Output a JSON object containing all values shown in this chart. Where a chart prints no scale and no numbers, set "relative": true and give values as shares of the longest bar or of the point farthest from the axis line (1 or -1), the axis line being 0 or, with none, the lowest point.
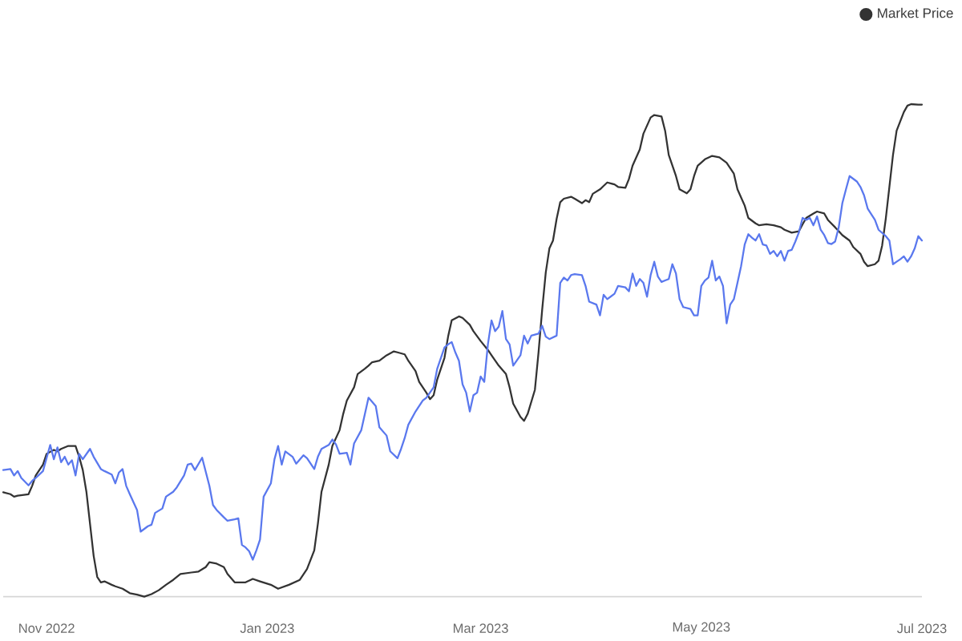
{
  "chart_data": {
    "type": "line",
    "relative": true,
    "legend": "top right",
    "xlim": [
      "2022-10-20",
      "2023-07-01"
    ],
    "xticks": [
      {
        "value": "2022-11-01",
        "label": "Nov 2022"
      },
      {
        "value": "2023-01-01",
        "label": "Jan 2023"
      },
      {
        "value": "2023-03-01",
        "label": "Mar 2023"
      },
      {
        "value": "2023-05-01",
        "label": "May 2023"
      },
      {
        "value": "2023-07-01",
        "label": "Jul 2023"
      }
    ],
    "series": [
      {
        "name": "Market Price",
        "color": "#333333",
        "x": [
          "2022-10-20",
          "2022-10-22",
          "2022-10-23",
          "2022-10-24",
          "2022-10-27",
          "2022-10-28",
          "2022-10-29",
          "2022-10-31",
          "2022-11-01",
          "2022-11-03",
          "2022-11-04",
          "2022-11-05",
          "2022-11-07",
          "2022-11-09",
          "2022-11-10",
          "2022-11-11",
          "2022-11-12",
          "2022-11-13",
          "2022-11-14",
          "2022-11-15",
          "2022-11-16",
          "2022-11-17",
          "2022-11-19",
          "2022-11-20",
          "2022-11-22",
          "2022-11-24",
          "2022-11-26",
          "2022-11-28",
          "2022-11-30",
          "2022-12-02",
          "2022-12-04",
          "2022-12-06",
          "2022-12-08",
          "2022-12-11",
          "2022-12-13",
          "2022-12-15",
          "2022-12-16",
          "2022-12-18",
          "2022-12-20",
          "2022-12-21",
          "2022-12-23",
          "2022-12-26",
          "2022-12-28",
          "2022-12-30",
          "2023-01-02",
          "2023-01-04",
          "2023-01-07",
          "2023-01-10",
          "2023-01-12",
          "2023-01-14",
          "2023-01-15",
          "2023-01-16",
          "2023-01-18",
          "2023-01-19",
          "2023-01-21",
          "2023-01-22",
          "2023-01-23",
          "2023-01-25",
          "2023-01-26",
          "2023-01-28",
          "2023-01-29",
          "2023-01-30",
          "2023-02-01",
          "2023-02-03",
          "2023-02-05",
          "2023-02-06",
          "2023-02-08",
          "2023-02-09",
          "2023-02-11",
          "2023-02-12",
          "2023-02-14",
          "2023-02-15",
          "2023-02-16",
          "2023-02-17",
          "2023-02-19",
          "2023-02-20",
          "2023-02-21",
          "2023-02-23",
          "2023-02-24",
          "2023-02-26",
          "2023-02-27",
          "2023-03-01",
          "2023-03-03",
          "2023-03-04",
          "2023-03-06",
          "2023-03-08",
          "2023-03-09",
          "2023-03-10",
          "2023-03-12",
          "2023-03-13",
          "2023-03-14",
          "2023-03-16",
          "2023-03-17",
          "2023-03-18",
          "2023-03-19",
          "2023-03-20",
          "2023-03-21",
          "2023-03-22",
          "2023-03-23",
          "2023-03-24",
          "2023-03-26",
          "2023-03-27",
          "2023-03-29",
          "2023-03-30",
          "2023-03-31",
          "2023-04-01",
          "2023-04-03",
          "2023-04-04",
          "2023-04-05",
          "2023-04-07",
          "2023-04-08",
          "2023-04-10",
          "2023-04-11",
          "2023-04-12",
          "2023-04-14",
          "2023-04-15",
          "2023-04-17",
          "2023-04-18",
          "2023-04-20",
          "2023-04-21",
          "2023-04-22",
          "2023-04-24",
          "2023-04-25",
          "2023-04-27",
          "2023-04-28",
          "2023-04-29",
          "2023-04-30",
          "2023-05-02",
          "2023-05-04",
          "2023-05-06",
          "2023-05-08",
          "2023-05-10",
          "2023-05-11",
          "2023-05-13",
          "2023-05-14",
          "2023-05-16",
          "2023-05-17",
          "2023-05-19",
          "2023-05-21",
          "2023-05-23",
          "2023-05-24",
          "2023-05-26",
          "2023-05-28",
          "2023-05-29",
          "2023-05-30",
          "2023-06-01",
          "2023-06-02",
          "2023-06-04",
          "2023-06-05",
          "2023-06-07",
          "2023-06-08",
          "2023-06-09",
          "2023-06-11",
          "2023-06-12",
          "2023-06-14",
          "2023-06-15",
          "2023-06-16",
          "2023-06-18",
          "2023-06-19",
          "2023-06-20",
          "2023-06-21",
          "2023-06-22",
          "2023-06-23",
          "2023-06-24",
          "2023-06-26",
          "2023-06-27",
          "2023-06-28",
          "2023-06-30",
          "2023-07-01"
        ],
        "values": [
          0.212,
          0.208,
          0.203,
          0.205,
          0.208,
          0.225,
          0.246,
          0.268,
          0.29,
          0.298,
          0.295,
          0.3,
          0.306,
          0.306,
          0.284,
          0.257,
          0.213,
          0.148,
          0.083,
          0.04,
          0.029,
          0.031,
          0.024,
          0.021,
          0.016,
          0.007,
          0.004,
          0,
          0.005,
          0.013,
          0.024,
          0.034,
          0.046,
          0.049,
          0.051,
          0.06,
          0.07,
          0.067,
          0.06,
          0.046,
          0.029,
          0.029,
          0.036,
          0.031,
          0.024,
          0.016,
          0.024,
          0.034,
          0.056,
          0.094,
          0.148,
          0.213,
          0.268,
          0.306,
          0.338,
          0.371,
          0.398,
          0.425,
          0.452,
          0.463,
          0.469,
          0.476,
          0.479,
          0.49,
          0.498,
          0.496,
          0.492,
          0.479,
          0.458,
          0.436,
          0.414,
          0.401,
          0.409,
          0.441,
          0.485,
          0.528,
          0.561,
          0.569,
          0.566,
          0.552,
          0.539,
          0.519,
          0.501,
          0.49,
          0.469,
          0.452,
          0.425,
          0.392,
          0.365,
          0.357,
          0.371,
          0.42,
          0.496,
          0.582,
          0.658,
          0.707,
          0.723,
          0.767,
          0.801,
          0.808,
          0.812,
          0.808,
          0.799,
          0.805,
          0.801,
          0.818,
          0.827,
          0.834,
          0.841,
          0.837,
          0.832,
          0.83,
          0.848,
          0.875,
          0.908,
          0.94,
          0.973,
          0.978,
          0.975,
          0.946,
          0.897,
          0.854,
          0.827,
          0.819,
          0.827,
          0.854,
          0.875,
          0.888,
          0.895,
          0.892,
          0.881,
          0.859,
          0.827,
          0.794,
          0.769,
          0.758,
          0.754,
          0.756,
          0.754,
          0.75,
          0.745,
          0.739,
          0.742,
          0.756,
          0.769,
          0.778,
          0.782,
          0.778,
          0.765,
          0.75,
          0.742,
          0.734,
          0.723,
          0.71,
          0.696,
          0.68,
          0.671,
          0.675,
          0.682,
          0.713,
          0.767,
          0.832,
          0.897,
          0.946,
          0.984,
          0.997,
          1,
          0.999,
          0.999
        ]
      },
      {
        "color": "#5a78ee",
        "x": [
          "2022-10-20",
          "2022-10-22",
          "2022-10-23",
          "2022-10-24",
          "2022-10-25",
          "2022-10-27",
          "2022-10-28",
          "2022-10-29",
          "2022-10-31",
          "2022-11-02",
          "2022-11-03",
          "2022-11-04",
          "2022-11-05",
          "2022-11-06",
          "2022-11-07",
          "2022-11-08",
          "2022-11-09",
          "2022-11-10",
          "2022-11-11",
          "2022-11-13",
          "2022-11-14",
          "2022-11-16",
          "2022-11-17",
          "2022-11-19",
          "2022-11-20",
          "2022-11-21",
          "2022-11-22",
          "2022-11-23",
          "2022-11-24",
          "2022-11-26",
          "2022-11-27",
          "2022-11-29",
          "2022-11-30",
          "2022-12-01",
          "2022-12-03",
          "2022-12-04",
          "2022-12-06",
          "2022-12-07",
          "2022-12-09",
          "2022-12-10",
          "2022-12-11",
          "2022-12-12",
          "2022-12-14",
          "2022-12-16",
          "2022-12-17",
          "2022-12-18",
          "2022-12-20",
          "2022-12-21",
          "2022-12-23",
          "2022-12-24",
          "2022-12-25",
          "2022-12-26",
          "2022-12-27",
          "2022-12-28",
          "2022-12-29",
          "2022-12-30",
          "2022-12-31",
          "2023-01-02",
          "2023-01-03",
          "2023-01-04",
          "2023-01-05",
          "2023-01-06",
          "2023-01-08",
          "2023-01-09",
          "2023-01-11",
          "2023-01-12",
          "2023-01-14",
          "2023-01-15",
          "2023-01-16",
          "2023-01-18",
          "2023-01-19",
          "2023-01-20",
          "2023-01-21",
          "2023-01-23",
          "2023-01-24",
          "2023-01-25",
          "2023-01-27",
          "2023-01-28",
          "2023-01-29",
          "2023-01-31",
          "2023-02-01",
          "2023-02-03",
          "2023-02-04",
          "2023-02-06",
          "2023-02-07",
          "2023-02-08",
          "2023-02-09",
          "2023-02-11",
          "2023-02-13",
          "2023-02-14",
          "2023-02-16",
          "2023-02-17",
          "2023-02-19",
          "2023-02-20",
          "2023-02-21",
          "2023-02-22",
          "2023-02-23",
          "2023-02-24",
          "2023-02-25",
          "2023-02-26",
          "2023-02-27",
          "2023-02-28",
          "2023-03-01",
          "2023-03-02",
          "2023-03-03",
          "2023-03-04",
          "2023-03-05",
          "2023-03-06",
          "2023-03-07",
          "2023-03-08",
          "2023-03-09",
          "2023-03-10",
          "2023-03-12",
          "2023-03-13",
          "2023-03-14",
          "2023-03-15",
          "2023-03-17",
          "2023-03-18",
          "2023-03-19",
          "2023-03-20",
          "2023-03-22",
          "2023-03-23",
          "2023-03-24",
          "2023-03-25",
          "2023-03-26",
          "2023-03-27",
          "2023-03-29",
          "2023-03-30",
          "2023-03-31",
          "2023-04-02",
          "2023-04-03",
          "2023-04-04",
          "2023-04-05",
          "2023-04-07",
          "2023-04-08",
          "2023-04-10",
          "2023-04-11",
          "2023-04-12",
          "2023-04-13",
          "2023-04-14",
          "2023-04-15",
          "2023-04-16",
          "2023-04-17",
          "2023-04-18",
          "2023-04-19",
          "2023-04-20",
          "2023-04-21",
          "2023-04-22",
          "2023-04-23",
          "2023-04-24",
          "2023-04-25",
          "2023-04-26",
          "2023-04-28",
          "2023-04-29",
          "2023-04-30",
          "2023-05-01",
          "2023-05-02",
          "2023-05-03",
          "2023-05-04",
          "2023-05-05",
          "2023-05-06",
          "2023-05-07",
          "2023-05-08",
          "2023-05-09",
          "2023-05-10",
          "2023-05-11",
          "2023-05-12",
          "2023-05-13",
          "2023-05-14",
          "2023-05-15",
          "2023-05-16",
          "2023-05-17",
          "2023-05-18",
          "2023-05-19",
          "2023-05-20",
          "2023-05-21",
          "2023-05-22",
          "2023-05-23",
          "2023-05-24",
          "2023-05-25",
          "2023-05-26",
          "2023-05-27",
          "2023-05-28",
          "2023-05-29",
          "2023-05-30",
          "2023-05-31",
          "2023-06-01",
          "2023-06-02",
          "2023-06-03",
          "2023-06-04",
          "2023-06-05",
          "2023-06-06",
          "2023-06-07",
          "2023-06-08",
          "2023-06-09",
          "2023-06-10",
          "2023-06-11",
          "2023-06-13",
          "2023-06-14",
          "2023-06-15",
          "2023-06-16",
          "2023-06-18",
          "2023-06-19",
          "2023-06-21",
          "2023-06-22",
          "2023-06-23",
          "2023-06-24",
          "2023-06-25",
          "2023-06-26",
          "2023-06-27",
          "2023-06-28",
          "2023-06-29",
          "2023-06-30",
          "2023-07-01"
        ],
        "values": [
          0.257,
          0.259,
          0.246,
          0.255,
          0.241,
          0.226,
          0.235,
          0.241,
          0.255,
          0.308,
          0.279,
          0.303,
          0.273,
          0.284,
          0.268,
          0.277,
          0.246,
          0.29,
          0.279,
          0.3,
          0.284,
          0.259,
          0.255,
          0.248,
          0.23,
          0.252,
          0.259,
          0.225,
          0.208,
          0.176,
          0.132,
          0.143,
          0.146,
          0.17,
          0.179,
          0.203,
          0.213,
          0.222,
          0.246,
          0.268,
          0.27,
          0.257,
          0.282,
          0.225,
          0.186,
          0.176,
          0.161,
          0.154,
          0.157,
          0.159,
          0.105,
          0.1,
          0.092,
          0.075,
          0.094,
          0.116,
          0.203,
          0.23,
          0.279,
          0.306,
          0.268,
          0.295,
          0.284,
          0.27,
          0.287,
          0.281,
          0.259,
          0.284,
          0.3,
          0.308,
          0.319,
          0.309,
          0.29,
          0.292,
          0.268,
          0.311,
          0.338,
          0.371,
          0.404,
          0.387,
          0.344,
          0.327,
          0.295,
          0.281,
          0.3,
          0.322,
          0.349,
          0.376,
          0.398,
          0.404,
          0.425,
          0.463,
          0.506,
          0.512,
          0.517,
          0.496,
          0.479,
          0.431,
          0.414,
          0.376,
          0.409,
          0.414,
          0.447,
          0.436,
          0.512,
          0.561,
          0.539,
          0.548,
          0.58,
          0.523,
          0.512,
          0.469,
          0.49,
          0.53,
          0.514,
          0.53,
          0.534,
          0.55,
          0.528,
          0.523,
          0.53,
          0.637,
          0.648,
          0.642,
          0.653,
          0.655,
          0.653,
          0.631,
          0.599,
          0.593,
          0.571,
          0.613,
          0.604,
          0.615,
          0.631,
          0.628,
          0.62,
          0.656,
          0.631,
          0.645,
          0.637,
          0.609,
          0.653,
          0.68,
          0.65,
          0.639,
          0.642,
          0.645,
          0.675,
          0.656,
          0.604,
          0.588,
          0.584,
          0.571,
          0.571,
          0.631,
          0.642,
          0.648,
          0.682,
          0.642,
          0.65,
          0.631,
          0.555,
          0.593,
          0.604,
          0.637,
          0.671,
          0.715,
          0.736,
          0.729,
          0.723,
          0.736,
          0.715,
          0.713,
          0.696,
          0.702,
          0.691,
          0.702,
          0.682,
          0.702,
          0.704,
          0.721,
          0.74,
          0.769,
          0.765,
          0.769,
          0.754,
          0.772,
          0.745,
          0.734,
          0.718,
          0.716,
          0.721,
          0.75,
          0.799,
          0.827,
          0.854,
          0.843,
          0.832,
          0.815,
          0.788,
          0.765,
          0.745,
          0.732,
          0.723,
          0.675,
          0.68,
          0.685,
          0.691,
          0.68,
          0.691,
          0.707,
          0.732,
          0.723
        ]
      }
    ]
  }
}
